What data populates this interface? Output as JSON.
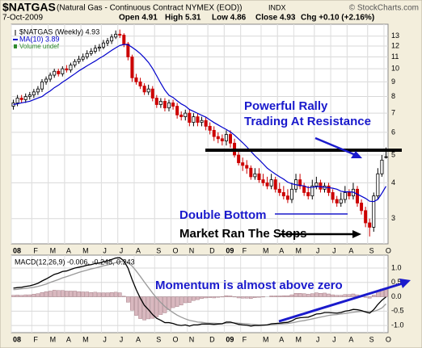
{
  "chart_data": [
    {
      "type": "candlestick",
      "title": "$NATGAS",
      "subtitle": "(Natural Gas - Continuous Contract NYMEX (EOD))",
      "exchange": "INDX",
      "source": "© StockCharts.com",
      "date": "7-Oct-2009",
      "quote": [
        "Open 4.91",
        "High 5.31",
        "Low 4.86",
        "Close 4.93",
        "Chg +0.10 (+2.16%)"
      ],
      "categories": [
        "08",
        null,
        null,
        null,
        null,
        "F",
        null,
        null,
        null,
        "M",
        null,
        null,
        null,
        "A",
        null,
        null,
        null,
        "M",
        null,
        null,
        null,
        null,
        "J",
        null,
        null,
        null,
        "J",
        null,
        null,
        null,
        "A",
        null,
        null,
        null,
        null,
        "S",
        null,
        null,
        null,
        "O",
        null,
        null,
        null,
        "N",
        null,
        null,
        null,
        null,
        "D",
        null,
        null,
        null,
        "09",
        null,
        null,
        null,
        "F",
        null,
        null,
        null,
        null,
        "M",
        null,
        null,
        null,
        "A",
        null,
        null,
        null,
        "M",
        null,
        null,
        null,
        null,
        "J",
        null,
        null,
        null,
        "J",
        null,
        null,
        null,
        "A",
        null,
        null,
        null,
        null,
        "S",
        null,
        null,
        null,
        "O"
      ],
      "series": [
        {
          "name": "$NATGAS (Weekly) 4.93",
          "color": "#000000",
          "down_color": "#cc0000",
          "open": [
            7.4,
            7.6,
            7.9,
            7.8,
            8.0,
            8.1,
            8.3,
            8.5,
            9.0,
            9.2,
            9.5,
            9.8,
            9.6,
            10.0,
            9.9,
            10.3,
            10.6,
            10.8,
            11.0,
            11.3,
            11.5,
            11.8,
            11.9,
            12.3,
            12.5,
            12.9,
            13.2,
            13.1,
            12.2,
            11.0,
            9.3,
            9.0,
            8.7,
            8.3,
            8.5,
            7.9,
            7.5,
            7.7,
            7.3,
            7.6,
            7.4,
            6.9,
            6.8,
            7.0,
            6.5,
            6.8,
            6.5,
            6.6,
            6.3,
            6.1,
            5.8,
            5.7,
            5.6,
            5.9,
            5.5,
            5.0,
            4.7,
            4.6,
            4.5,
            4.2,
            4.3,
            4.1,
            4.0,
            3.9,
            4.1,
            3.8,
            3.7,
            3.6,
            3.5,
            3.8,
            4.1,
            3.9,
            3.7,
            3.6,
            3.9,
            4.0,
            3.8,
            3.9,
            3.7,
            3.5,
            3.4,
            3.5,
            3.7,
            3.6,
            3.8,
            3.4,
            3.2,
            2.9,
            2.8,
            3.6,
            4.3,
            4.91
          ],
          "high": [
            7.8,
            8.1,
            8.1,
            8.2,
            8.3,
            8.5,
            8.7,
            9.2,
            9.4,
            9.7,
            10.0,
            10.0,
            10.2,
            10.3,
            10.5,
            10.8,
            11.1,
            11.3,
            11.6,
            11.8,
            12.1,
            12.2,
            12.6,
            12.8,
            13.2,
            13.6,
            13.7,
            13.3,
            12.4,
            11.2,
            9.6,
            9.3,
            8.9,
            8.8,
            8.7,
            8.1,
            7.9,
            7.9,
            7.8,
            7.8,
            7.6,
            7.1,
            7.2,
            7.2,
            7.0,
            7.0,
            6.8,
            6.8,
            6.5,
            6.3,
            6.0,
            5.9,
            6.1,
            6.1,
            5.7,
            5.2,
            4.9,
            4.8,
            4.6,
            4.5,
            4.5,
            4.3,
            4.2,
            4.3,
            4.2,
            4.0,
            3.9,
            3.8,
            4.0,
            4.3,
            4.3,
            4.0,
            3.9,
            4.1,
            4.2,
            4.1,
            4.0,
            4.0,
            3.8,
            3.6,
            3.7,
            3.9,
            3.8,
            4.0,
            3.9,
            3.5,
            3.3,
            3.0,
            3.7,
            4.5,
            5.0,
            5.31
          ],
          "low": [
            7.2,
            7.4,
            7.6,
            7.6,
            7.8,
            7.9,
            8.1,
            8.3,
            8.8,
            9.0,
            9.3,
            9.4,
            9.4,
            9.7,
            9.7,
            10.1,
            10.4,
            10.6,
            10.8,
            11.1,
            11.3,
            11.5,
            11.7,
            12.0,
            12.2,
            12.7,
            12.8,
            11.9,
            10.7,
            9.0,
            8.8,
            8.5,
            8.1,
            8.1,
            7.7,
            7.3,
            7.3,
            7.1,
            7.1,
            7.2,
            6.7,
            6.6,
            6.6,
            6.3,
            6.3,
            6.3,
            6.3,
            6.1,
            5.9,
            5.6,
            5.5,
            5.4,
            5.4,
            5.3,
            4.9,
            4.6,
            4.4,
            4.3,
            4.1,
            4.1,
            4.0,
            3.9,
            3.8,
            3.8,
            3.7,
            3.6,
            3.5,
            3.4,
            3.4,
            3.7,
            3.8,
            3.6,
            3.5,
            3.5,
            3.8,
            3.7,
            3.7,
            3.6,
            3.4,
            3.3,
            3.3,
            3.4,
            3.5,
            3.5,
            3.3,
            3.1,
            2.8,
            2.6,
            2.7,
            3.5,
            4.2,
            4.86
          ],
          "close": [
            7.6,
            7.9,
            7.8,
            8.0,
            8.1,
            8.3,
            8.5,
            9.0,
            9.2,
            9.5,
            9.8,
            9.6,
            10.0,
            9.9,
            10.3,
            10.6,
            10.8,
            11.0,
            11.3,
            11.5,
            11.8,
            11.9,
            12.3,
            12.5,
            12.9,
            13.2,
            13.1,
            12.2,
            11.0,
            9.3,
            9.0,
            8.7,
            8.3,
            8.5,
            7.9,
            7.5,
            7.7,
            7.3,
            7.6,
            7.4,
            6.9,
            6.8,
            7.0,
            6.5,
            6.8,
            6.5,
            6.6,
            6.3,
            6.1,
            5.8,
            5.7,
            5.6,
            5.9,
            5.5,
            5.0,
            4.7,
            4.6,
            4.5,
            4.2,
            4.3,
            4.1,
            4.0,
            3.9,
            4.1,
            3.8,
            3.7,
            3.6,
            3.5,
            3.8,
            4.1,
            3.9,
            3.7,
            3.6,
            3.9,
            4.0,
            3.8,
            3.9,
            3.7,
            3.5,
            3.4,
            3.5,
            3.7,
            3.6,
            3.8,
            3.4,
            3.2,
            2.9,
            2.8,
            3.6,
            4.3,
            4.8,
            4.93
          ]
        },
        {
          "name": "MA(10) 3.89",
          "color": "#0000cc",
          "values": [
            7.5,
            7.55,
            7.6,
            7.65,
            7.7,
            7.8,
            7.9,
            8.0,
            8.2,
            8.37,
            8.59,
            8.76,
            8.98,
            9.17,
            9.39,
            9.6,
            9.83,
            10.03,
            10.24,
            10.44,
            10.64,
            10.87,
            11.08,
            11.33,
            11.59,
            11.83,
            12.06,
            12.16,
            12.13,
            11.88,
            11.6,
            11.29,
            10.92,
            10.52,
            10.02,
            9.45,
            8.9,
            8.42,
            8.08,
            7.94,
            7.73,
            7.54,
            7.41,
            7.21,
            7.1,
            6.99,
            6.88,
            6.78,
            6.63,
            6.49,
            6.37,
            6.25,
            6.14,
            6.02,
            5.87,
            5.69,
            5.52,
            5.34,
            5.15,
            4.97,
            4.82,
            4.66,
            4.5,
            4.39,
            4.29,
            4.2,
            4.12,
            4.02,
            3.97,
            3.94,
            3.92,
            3.9,
            3.85,
            3.86,
            3.88,
            3.88,
            3.86,
            3.85,
            3.83,
            3.8,
            3.74,
            3.72,
            3.72,
            3.71,
            3.65,
            3.59,
            3.53,
            3.45,
            3.44,
            3.5,
            3.68,
            3.89
          ]
        },
        {
          "name": "Volume undef",
          "color": "#2e8b2e"
        }
      ],
      "ylim": [
        2.45,
        14.3
      ],
      "yticks": [
        3,
        4,
        5,
        6,
        7,
        8,
        9,
        10,
        11,
        12,
        13
      ],
      "log": true,
      "grid": true,
      "annotations": [
        "Powerful Rally",
        "Trading At Resistance",
        "Double Bottom",
        "Market Ran The Stops"
      ]
    },
    {
      "type": "macd",
      "title": "MACD(12,26,9) -0.006, -0.248, 0.243",
      "categories": [
        "08",
        null,
        null,
        null,
        null,
        "F",
        null,
        null,
        null,
        "M",
        null,
        null,
        null,
        "A",
        null,
        null,
        null,
        "M",
        null,
        null,
        null,
        null,
        "J",
        null,
        null,
        null,
        "J",
        null,
        null,
        null,
        "A",
        null,
        null,
        null,
        null,
        "S",
        null,
        null,
        null,
        "O",
        null,
        null,
        null,
        "N",
        null,
        null,
        null,
        null,
        "D",
        null,
        null,
        null,
        "09",
        null,
        null,
        null,
        "F",
        null,
        null,
        null,
        null,
        "M",
        null,
        null,
        null,
        "A",
        null,
        null,
        null,
        "M",
        null,
        null,
        null,
        null,
        "J",
        null,
        null,
        null,
        "J",
        null,
        null,
        null,
        "A",
        null,
        null,
        null,
        null,
        "S",
        null,
        null,
        null,
        "O"
      ],
      "series": [
        {
          "kind": "bar",
          "color": "#d9b8bf",
          "values": [
            0.05,
            0.06,
            0.05,
            0.07,
            0.07,
            0.09,
            0.11,
            0.15,
            0.18,
            0.2,
            0.23,
            0.22,
            0.22,
            0.2,
            0.2,
            0.2,
            0.18,
            0.17,
            0.17,
            0.15,
            0.16,
            0.14,
            0.14,
            0.14,
            0.15,
            0.16,
            0.14,
            0.02,
            -0.19,
            -0.47,
            -0.65,
            -0.76,
            -0.81,
            -0.77,
            -0.75,
            -0.7,
            -0.62,
            -0.56,
            -0.45,
            -0.38,
            -0.34,
            -0.29,
            -0.21,
            -0.2,
            -0.13,
            -0.1,
            -0.06,
            -0.04,
            -0.03,
            -0.04,
            -0.02,
            -0.01,
            0.04,
            0.03,
            -0.01,
            -0.04,
            -0.05,
            -0.05,
            -0.06,
            -0.03,
            -0.02,
            -0.01,
            0.0,
            0.03,
            0.03,
            0.03,
            0.04,
            0.04,
            0.07,
            0.12,
            0.12,
            0.11,
            0.09,
            0.11,
            0.14,
            0.12,
            0.13,
            0.1,
            0.07,
            0.05,
            0.05,
            0.08,
            0.08,
            0.1,
            0.07,
            0.03,
            -0.02,
            -0.05,
            0.06,
            0.19,
            0.27,
            0.243
          ]
        },
        {
          "kind": "line",
          "color": "#999999",
          "values": [
            0.25,
            0.26,
            0.28,
            0.29,
            0.31,
            0.33,
            0.36,
            0.4,
            0.44,
            0.5,
            0.55,
            0.6,
            0.66,
            0.7,
            0.75,
            0.8,
            0.85,
            0.89,
            0.93,
            0.97,
            1.0,
            1.04,
            1.08,
            1.11,
            1.15,
            1.19,
            1.22,
            1.23,
            1.19,
            1.07,
            0.9,
            0.71,
            0.51,
            0.32,
            0.13,
            -0.05,
            -0.2,
            -0.34,
            -0.45,
            -0.55,
            -0.64,
            -0.71,
            -0.77,
            -0.82,
            -0.85,
            -0.88,
            -0.89,
            -0.91,
            -0.92,
            -0.92,
            -0.93,
            -0.93,
            -0.92,
            -0.91,
            -0.91,
            -0.92,
            -0.93,
            -0.94,
            -0.96,
            -0.97,
            -0.98,
            -0.98,
            -0.98,
            -0.97,
            -0.96,
            -0.95,
            -0.94,
            -0.93,
            -0.91,
            -0.88,
            -0.85,
            -0.83,
            -0.8,
            -0.77,
            -0.74,
            -0.71,
            -0.68,
            -0.65,
            -0.63,
            -0.62,
            -0.6,
            -0.58,
            -0.56,
            -0.54,
            -0.52,
            -0.51,
            -0.51,
            -0.52,
            -0.51,
            -0.46,
            -0.39,
            -0.248
          ]
        },
        {
          "kind": "line",
          "color": "#000000",
          "values": [
            0.3,
            0.32,
            0.33,
            0.36,
            0.38,
            0.42,
            0.47,
            0.55,
            0.62,
            0.7,
            0.78,
            0.82,
            0.88,
            0.9,
            0.95,
            1.0,
            1.03,
            1.06,
            1.1,
            1.12,
            1.16,
            1.18,
            1.22,
            1.25,
            1.3,
            1.35,
            1.36,
            1.25,
            1.0,
            0.6,
            0.25,
            -0.05,
            -0.3,
            -0.45,
            -0.62,
            -0.75,
            -0.82,
            -0.9,
            -0.9,
            -0.93,
            -0.98,
            -1.0,
            -0.98,
            -1.02,
            -0.98,
            -0.98,
            -0.95,
            -0.95,
            -0.95,
            -0.96,
            -0.95,
            -0.94,
            -0.88,
            -0.88,
            -0.92,
            -0.96,
            -0.98,
            -0.99,
            -1.02,
            -1.0,
            -1.0,
            -0.99,
            -0.98,
            -0.94,
            -0.93,
            -0.92,
            -0.9,
            -0.89,
            -0.84,
            -0.76,
            -0.73,
            -0.72,
            -0.71,
            -0.66,
            -0.6,
            -0.59,
            -0.55,
            -0.55,
            -0.56,
            -0.57,
            -0.55,
            -0.5,
            -0.48,
            -0.44,
            -0.45,
            -0.48,
            -0.53,
            -0.57,
            -0.45,
            -0.27,
            -0.12,
            -0.006
          ]
        }
      ],
      "ylim": [
        -1.25,
        1.45
      ],
      "yticks": [
        {
          "value": 1,
          "label": "1.0"
        },
        0.5,
        {
          "value": 0,
          "label": "0.0"
        },
        -0.5,
        {
          "value": -1,
          "label": "-1.0"
        }
      ],
      "grid": true,
      "annotations": [
        "Momentum is almost above zero"
      ]
    }
  ]
}
